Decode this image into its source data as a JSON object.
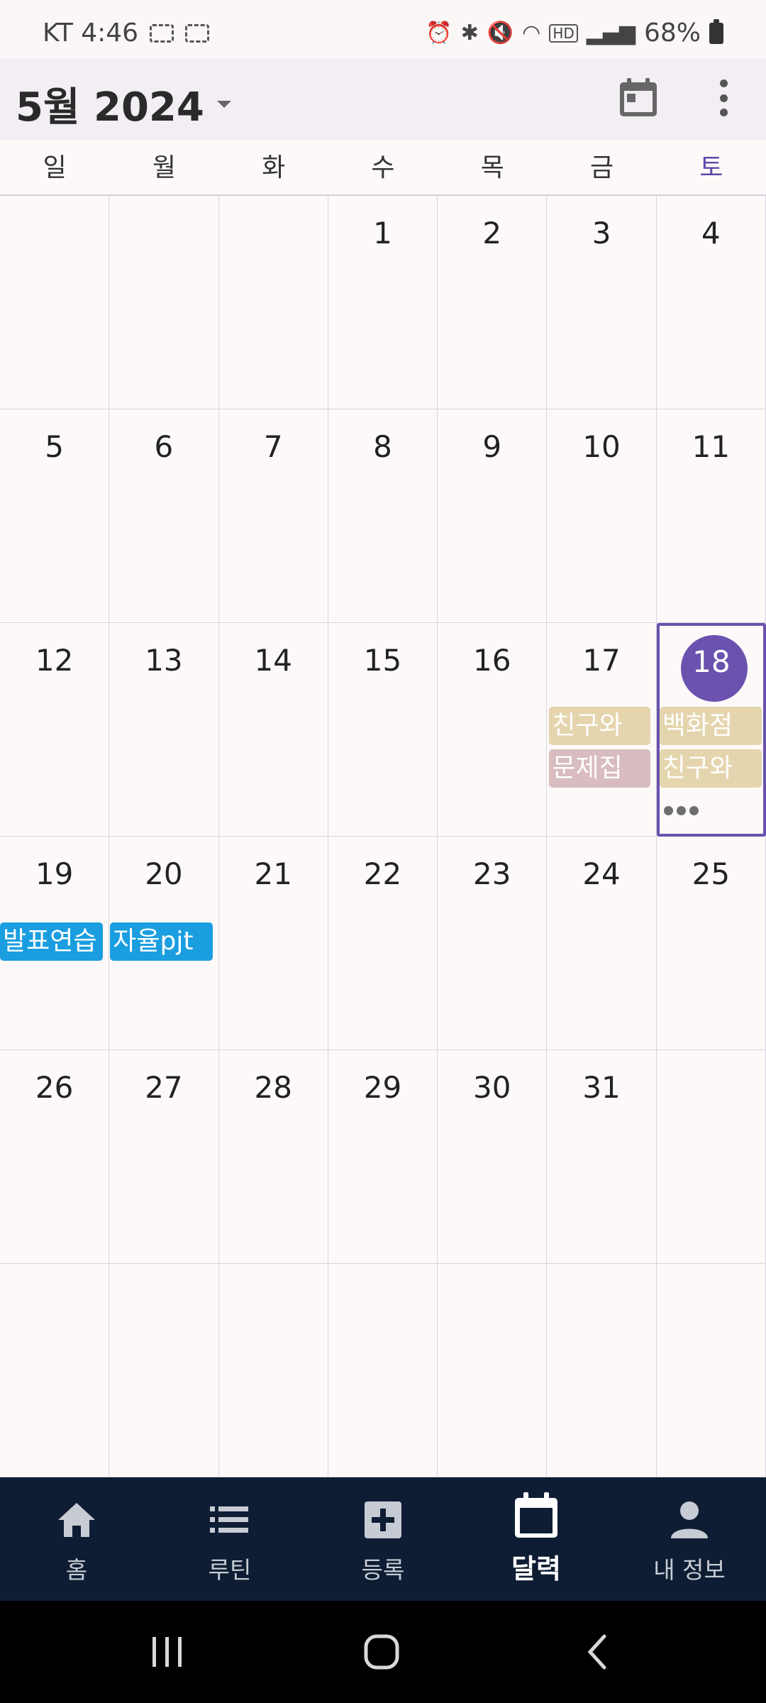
{
  "status_bar": {
    "carrier_time": "KT 4:46",
    "battery": "68%"
  },
  "header": {
    "month_title": "5월 2024"
  },
  "weekdays": [
    "일",
    "월",
    "화",
    "수",
    "목",
    "금",
    "토"
  ],
  "calendar": {
    "days": [
      "",
      "",
      "",
      "1",
      "2",
      "3",
      "4",
      "5",
      "6",
      "7",
      "8",
      "9",
      "10",
      "11",
      "12",
      "13",
      "14",
      "15",
      "16",
      "17",
      "18",
      "19",
      "20",
      "21",
      "22",
      "23",
      "24",
      "25",
      "26",
      "27",
      "28",
      "29",
      "30",
      "31",
      "",
      "",
      "",
      "",
      "",
      "",
      "",
      ""
    ],
    "events": {
      "may17_1": "친구와",
      "may17_2": "문제집",
      "may18_1": "백화점",
      "may18_2": "친구와",
      "may19_1": "발표연습",
      "may20_1": "자율pjt"
    },
    "colors": {
      "today": "#6a52ae",
      "tan": "#e5d5ae",
      "mauve": "#d8bcbf",
      "blue": "#1a9ee0"
    }
  },
  "bottom_nav": {
    "items": [
      {
        "label": "홈",
        "icon": "home-icon"
      },
      {
        "label": "루틴",
        "icon": "list-icon"
      },
      {
        "label": "등록",
        "icon": "add-box-icon"
      },
      {
        "label": "달력",
        "icon": "calendar-icon"
      },
      {
        "label": "내 정보",
        "icon": "person-icon"
      }
    ],
    "active_index": 3
  }
}
